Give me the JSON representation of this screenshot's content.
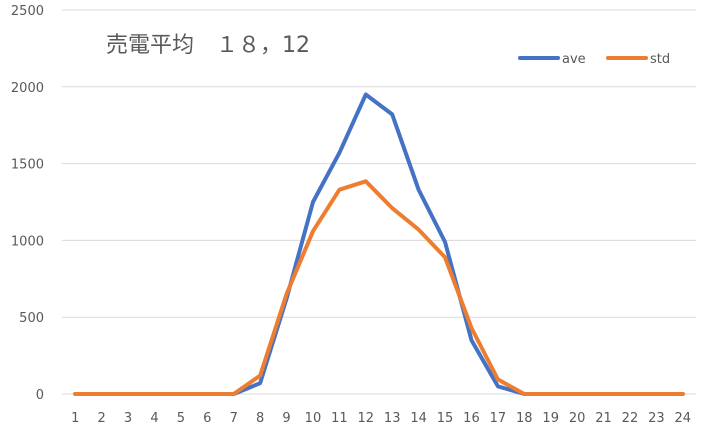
{
  "chart_data": {
    "type": "line",
    "title": "売電平均　１８，12",
    "xlabel": "",
    "ylabel": "",
    "x": [
      1,
      2,
      3,
      4,
      5,
      6,
      7,
      8,
      9,
      10,
      11,
      12,
      13,
      14,
      15,
      16,
      17,
      18,
      19,
      20,
      21,
      22,
      23,
      24
    ],
    "ylim": [
      0,
      2500
    ],
    "yticks": [
      0,
      500,
      1000,
      1500,
      2000,
      2500
    ],
    "grid": true,
    "legend_position": "top-right",
    "series": [
      {
        "name": "ave",
        "color": "#4472c4",
        "values": [
          0,
          0,
          0,
          0,
          0,
          0,
          0,
          70,
          620,
          1250,
          1570,
          1950,
          1820,
          1330,
          990,
          350,
          50,
          0,
          0,
          0,
          0,
          0,
          0,
          0
        ]
      },
      {
        "name": "std",
        "color": "#ed7d31",
        "values": [
          0,
          0,
          0,
          0,
          0,
          0,
          0,
          120,
          650,
          1060,
          1330,
          1385,
          1210,
          1070,
          890,
          430,
          95,
          0,
          0,
          0,
          0,
          0,
          0,
          0
        ]
      }
    ]
  }
}
